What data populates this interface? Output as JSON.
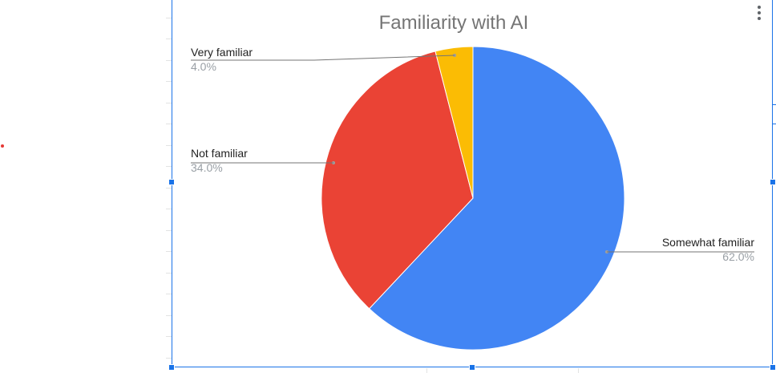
{
  "chart_data": {
    "type": "pie",
    "title": "Familiarity with AI",
    "slices": [
      {
        "label": "Somewhat familiar",
        "value": 62.0,
        "value_label": "62.0%",
        "color": "#4285f4"
      },
      {
        "label": "Not familiar",
        "value": 34.0,
        "value_label": "34.0%",
        "color": "#ea4335"
      },
      {
        "label": "Very familiar",
        "value": 4.0,
        "value_label": "4.0%",
        "color": "#fbbc04"
      }
    ],
    "start_angle_deg": 0,
    "direction": "clockwise",
    "legend": "labeled leader lines",
    "label_color": "#222222",
    "value_color": "#9aa0a6",
    "title_color": "#757575"
  },
  "chart_menu": {
    "icon": "more-vert-icon"
  },
  "selection": {
    "color": "#1a73e8"
  }
}
